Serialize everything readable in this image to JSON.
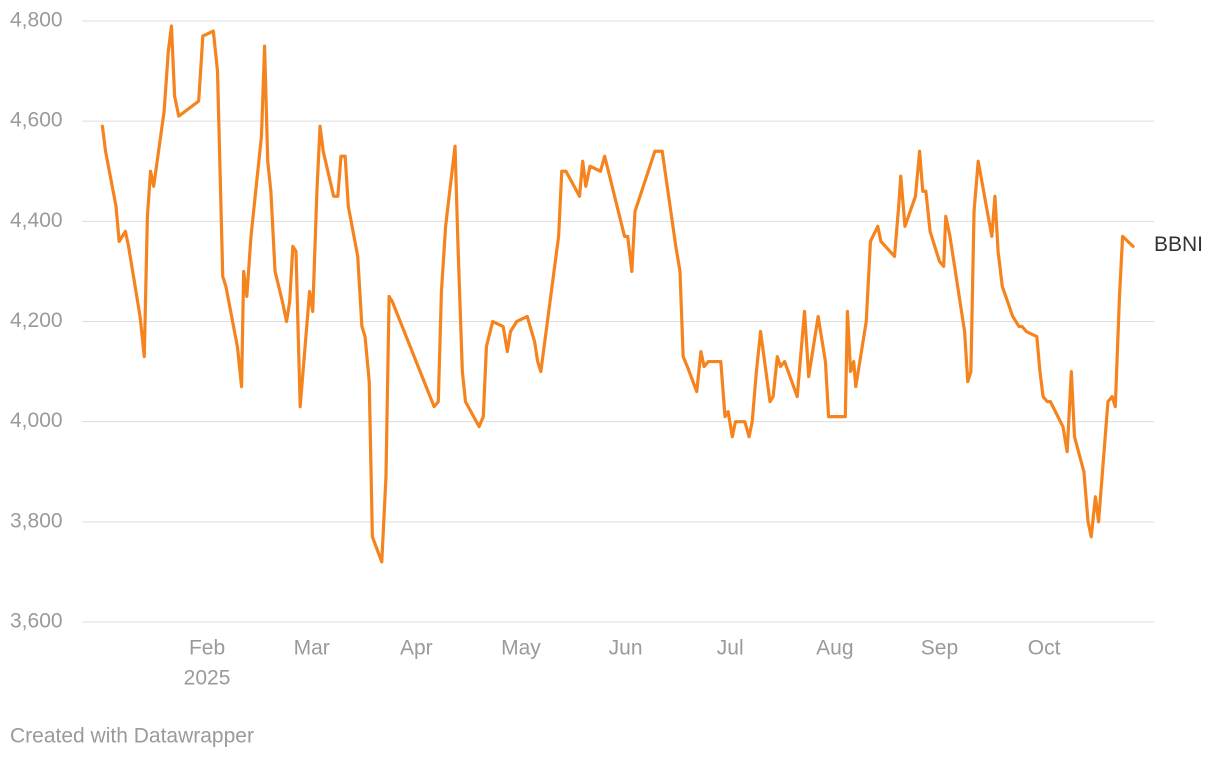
{
  "chart_data": {
    "type": "line",
    "footer": "Created with Datawrapper",
    "x": [
      0.0,
      0.03,
      0.13,
      0.16,
      0.22,
      0.25,
      0.36,
      0.4,
      0.43,
      0.46,
      0.49,
      0.59,
      0.63,
      0.66,
      0.69,
      0.73,
      0.92,
      0.96,
      1.06,
      1.1,
      1.15,
      1.18,
      1.29,
      1.33,
      1.35,
      1.38,
      1.42,
      1.52,
      1.55,
      1.58,
      1.61,
      1.65,
      1.72,
      1.76,
      1.79,
      1.82,
      1.85,
      1.89,
      1.98,
      2.01,
      2.05,
      2.08,
      2.11,
      2.21,
      2.25,
      2.28,
      2.32,
      2.35,
      2.44,
      2.48,
      2.51,
      2.55,
      2.58,
      2.67,
      2.71,
      2.74,
      2.77,
      3.17,
      3.21,
      3.24,
      3.28,
      3.37,
      3.4,
      3.44,
      3.47,
      3.6,
      3.64,
      3.67,
      3.73,
      3.83,
      3.87,
      3.9,
      3.96,
      4.06,
      4.13,
      4.16,
      4.19,
      4.36,
      4.39,
      4.43,
      4.56,
      4.59,
      4.62,
      4.66,
      4.76,
      4.8,
      4.99,
      5.02,
      5.06,
      5.09,
      5.28,
      5.35,
      5.48,
      5.52,
      5.55,
      5.59,
      5.68,
      5.72,
      5.75,
      5.79,
      5.91,
      5.95,
      5.98,
      6.02,
      6.05,
      6.14,
      6.18,
      6.21,
      6.25,
      6.29,
      6.38,
      6.41,
      6.45,
      6.48,
      6.52,
      6.64,
      6.71,
      6.75,
      6.84,
      6.91,
      6.94,
      7.1,
      7.12,
      7.15,
      7.18,
      7.2,
      7.3,
      7.34,
      7.41,
      7.44,
      7.57,
      7.61,
      7.63,
      7.67,
      7.77,
      7.81,
      7.84,
      7.87,
      7.91,
      8.0,
      8.04,
      8.06,
      8.1,
      8.24,
      8.27,
      8.3,
      8.33,
      8.37,
      8.5,
      8.53,
      8.56,
      8.6,
      8.7,
      8.76,
      8.79,
      8.83,
      8.93,
      8.96,
      8.99,
      9.03,
      9.06,
      9.18,
      9.22,
      9.26,
      9.29,
      9.38,
      9.42,
      9.45,
      9.49,
      9.52,
      9.61,
      9.65,
      9.68,
      9.72,
      9.75,
      9.85
    ],
    "series": [
      {
        "name": "BBNI",
        "color": "#f5841f",
        "values": [
          4590,
          4540,
          4430,
          4360,
          4380,
          4350,
          4210,
          4130,
          4410,
          4500,
          4470,
          4620,
          4740,
          4790,
          4650,
          4610,
          4640,
          4770,
          4780,
          4700,
          4290,
          4270,
          4150,
          4070,
          4300,
          4250,
          4370,
          4570,
          4750,
          4520,
          4460,
          4300,
          4240,
          4200,
          4240,
          4350,
          4340,
          4030,
          4260,
          4220,
          4460,
          4590,
          4540,
          4450,
          4450,
          4530,
          4530,
          4430,
          4330,
          4190,
          4170,
          4080,
          3770,
          3720,
          3890,
          4250,
          4240,
          4030,
          4040,
          4260,
          4390,
          4550,
          4340,
          4100,
          4040,
          3990,
          4010,
          4150,
          4200,
          4190,
          4140,
          4180,
          4200,
          4210,
          4160,
          4120,
          4100,
          4370,
          4500,
          4500,
          4450,
          4520,
          4470,
          4510,
          4500,
          4530,
          4370,
          4370,
          4300,
          4420,
          4540,
          4540,
          4350,
          4300,
          4130,
          4110,
          4060,
          4140,
          4110,
          4120,
          4120,
          4010,
          4020,
          3970,
          4000,
          4000,
          3970,
          4000,
          4100,
          4180,
          4040,
          4050,
          4130,
          4110,
          4120,
          4050,
          4220,
          4090,
          4210,
          4120,
          4010,
          4010,
          4220,
          4100,
          4120,
          4070,
          4200,
          4360,
          4390,
          4360,
          4330,
          4430,
          4490,
          4390,
          4450,
          4540,
          4460,
          4460,
          4380,
          4320,
          4310,
          4410,
          4370,
          4180,
          4080,
          4100,
          4420,
          4520,
          4370,
          4450,
          4340,
          4270,
          4210,
          4190,
          4190,
          4180,
          4170,
          4100,
          4050,
          4040,
          4040,
          3990,
          3940,
          4100,
          3970,
          3900,
          3800,
          3770,
          3850,
          3800,
          4040,
          4050,
          4030,
          4250,
          4370,
          4350
        ]
      }
    ],
    "xlim": [
      -0.195,
      10.05
    ],
    "xticks": [
      {
        "value": 1,
        "label": "Feb"
      },
      {
        "value": 2,
        "label": "Mar"
      },
      {
        "value": 3,
        "label": "Apr"
      },
      {
        "value": 4,
        "label": "May"
      },
      {
        "value": 5,
        "label": "Jun"
      },
      {
        "value": 6,
        "label": "Jul"
      },
      {
        "value": 7,
        "label": "Aug"
      },
      {
        "value": 8,
        "label": "Sep"
      },
      {
        "value": 9,
        "label": "Oct"
      }
    ],
    "xtick_year": "2025",
    "ylim": [
      3600,
      4800
    ],
    "yticks": [
      {
        "value": 3600,
        "label": "3,600"
      },
      {
        "value": 3800,
        "label": "3,800"
      },
      {
        "value": 4000,
        "label": "4,000"
      },
      {
        "value": 4200,
        "label": "4,200"
      },
      {
        "value": 4400,
        "label": "4,400"
      },
      {
        "value": 4600,
        "label": "4,600"
      },
      {
        "value": 4800,
        "label": "4,800"
      }
    ],
    "grid": true
  }
}
